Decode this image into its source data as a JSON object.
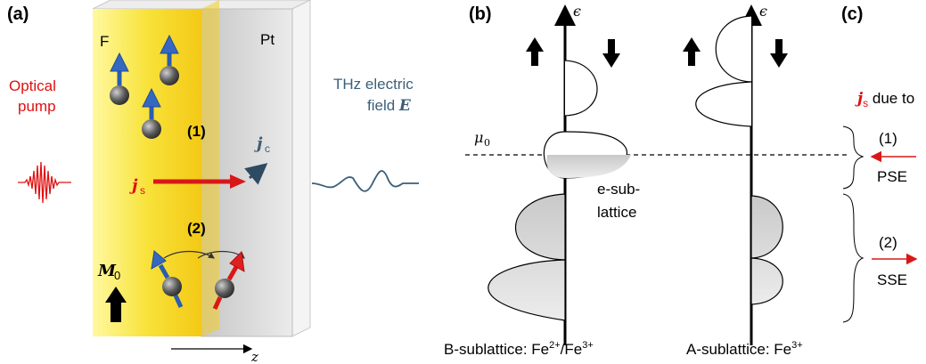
{
  "panels": {
    "a": "(a)",
    "b": "(b)",
    "c": "(c)"
  },
  "panel_a": {
    "ferromagnet_label": "F",
    "platinum_label": "Pt",
    "optical_pump": [
      "Optical",
      "pump"
    ],
    "process_1": "(1)",
    "process_2": "(2)",
    "spin_current": {
      "symbol": "j",
      "subscript": "s"
    },
    "charge_current": {
      "symbol": "j",
      "subscript": "c"
    },
    "magnetization": {
      "symbol": "M",
      "subscript": "0"
    },
    "thz_field": [
      "THz electric",
      "field "
    ],
    "thz_field_symbol": "E",
    "axis_label": "z"
  },
  "panel_b": {
    "energy_symbol": "ϵ",
    "chemical_potential": {
      "symbol": "μ",
      "subscript": "0"
    },
    "e_sublattice_label": [
      "e-sub-",
      "lattice"
    ],
    "b_sublattice": {
      "text": "B-sublattice: Fe",
      "sup1": "2+",
      "mid": "/Fe",
      "sup2": "3+"
    },
    "a_sublattice": {
      "text": "A-sublattice: Fe",
      "sup": "3+"
    }
  },
  "panel_c": {
    "heading_symbol": "j",
    "heading_subscript": "s",
    "heading_text": " due to",
    "process_1": "(1)",
    "process_1_label": "PSE",
    "process_2": "(2)",
    "process_2_label": "SSE"
  },
  "colors": {
    "ferromagnet": "#f6dc1a",
    "platinum": "#d4d4d4",
    "spin_up": "#2a5db0",
    "spin_red": "#d81818",
    "pump": "#e01010",
    "thz": "#3b5f7a",
    "band_fill": "#d6d6d6"
  }
}
